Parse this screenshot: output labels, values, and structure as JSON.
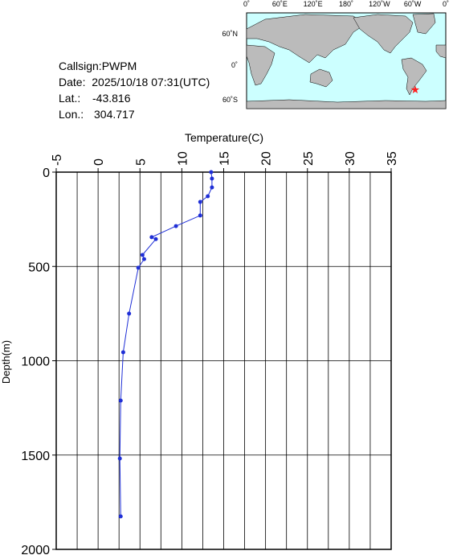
{
  "info": {
    "callsign": "Callsign:PWPM",
    "date": "Date:  2025/10/18 07:31(UTC)",
    "lat_label": "Lat.:",
    "lat": -43.816,
    "lon_label": "Lon.:",
    "lon": 304.717
  },
  "map": {
    "top_labels": [
      "0˚",
      "60˚E",
      "120˚E",
      "180˚",
      "120˚W",
      "60˚W",
      "0˚"
    ],
    "left_labels": [
      "60˚N",
      "0˚",
      "60˚S"
    ]
  },
  "chart_data": {
    "type": "line",
    "x_label": "Temperature(C)",
    "y_label": "Depth(m)",
    "color": "#1f2fd6",
    "series": [
      {
        "x": [
          13.5,
          13.6,
          13.6,
          13.1,
          12.2,
          12.2,
          9.3,
          6.4,
          6.9,
          5.3,
          5.5,
          4.8,
          3.7,
          3.0,
          2.7,
          2.6,
          2.7
        ],
        "values": [
          0,
          34,
          81,
          128,
          158,
          230,
          286,
          345,
          355,
          439,
          461,
          507,
          750,
          955,
          1211,
          1518,
          1825
        ]
      }
    ],
    "xlim": [
      -5,
      35
    ],
    "xticks": [
      -5,
      0,
      5,
      10,
      15,
      20,
      25,
      30,
      35
    ],
    "xminorticks": [
      -2.5,
      2.5,
      7.5,
      12.5,
      17.5,
      22.5,
      27.5,
      32.5
    ],
    "ylim": [
      0,
      2000
    ],
    "yticks": [
      0,
      500,
      1000,
      1500,
      2000
    ],
    "y_inverted": true,
    "grid": true
  }
}
